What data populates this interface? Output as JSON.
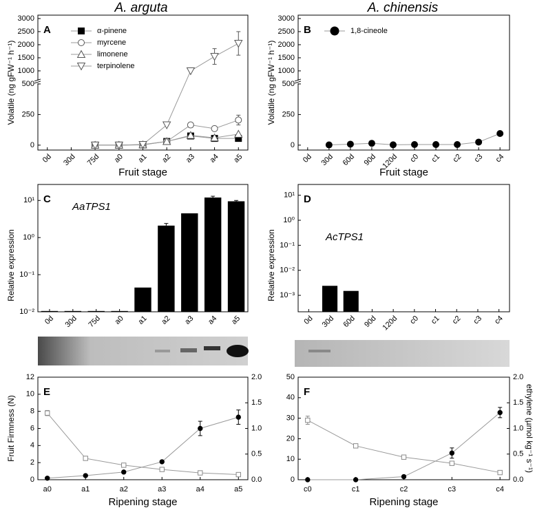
{
  "columns": [
    "A. arguta",
    "A. chinensis"
  ],
  "chart_data": [
    {
      "type": "line",
      "label": "A",
      "ylabel": "Volatile (ng gFW⁻¹ h⁻¹)",
      "xlabel": "Fruit stage",
      "categories": [
        "0d",
        "30d",
        "75d",
        "a0",
        "a1",
        "a2",
        "a3",
        "a4",
        "a5"
      ],
      "ylim": [
        -40,
        3130
      ],
      "ybreak": 500,
      "yticks": [
        0,
        250,
        500,
        1000,
        1500,
        2000,
        2500,
        3000
      ],
      "line_color": "#999",
      "series": [
        {
          "name": "α-pinene",
          "marker": "square-filled",
          "color": "#000",
          "values": [
            null,
            null,
            0,
            0,
            2,
            30,
            75,
            55,
            55
          ]
        },
        {
          "name": "myrcene",
          "marker": "circle-open",
          "color": "#555",
          "values": [
            null,
            null,
            0,
            0,
            5,
            30,
            165,
            135,
            205
          ],
          "errors": [
            null,
            null,
            null,
            null,
            null,
            null,
            null,
            20,
            40
          ]
        },
        {
          "name": "limonene",
          "marker": "triangle-up-open",
          "color": "#555",
          "values": [
            null,
            null,
            0,
            0,
            3,
            30,
            80,
            60,
            90
          ]
        },
        {
          "name": "terpinolene",
          "marker": "triangle-down-open",
          "color": "#555",
          "values": [
            null,
            null,
            0,
            0,
            5,
            165,
            1000,
            1550,
            2050
          ],
          "errors": [
            null,
            null,
            null,
            null,
            null,
            null,
            null,
            300,
            450
          ]
        }
      ]
    },
    {
      "type": "line",
      "label": "B",
      "ylabel": "Volatile (ng gFW⁻¹ h⁻¹)",
      "xlabel": "Fruit stage",
      "categories": [
        "0d",
        "30d",
        "60d",
        "90d",
        "120d",
        "c0",
        "c1",
        "c2",
        "c3",
        "c4"
      ],
      "ylim": [
        -40,
        3130
      ],
      "ybreak": 500,
      "yticks": [
        0,
        250,
        500,
        1000,
        1500,
        2000,
        2500,
        3000
      ],
      "line_color": "#999",
      "series": [
        {
          "name": "1,8-cineole",
          "marker": "circle-filled",
          "color": "#000",
          "values": [
            null,
            2,
            8,
            15,
            3,
            5,
            5,
            5,
            25,
            95
          ]
        }
      ]
    },
    {
      "type": "bar",
      "label": "C",
      "ylabel": "Relative expression",
      "annotation": "AaTPS1",
      "yscale": "log",
      "categories": [
        "0d",
        "30d",
        "75d",
        "a0",
        "a1",
        "a2",
        "a3",
        "a4",
        "a5"
      ],
      "ylim": [
        0.01,
        27
      ],
      "yticks": [
        {
          "value": 0.01,
          "label": "10⁻²"
        },
        {
          "value": 0.1,
          "label": "10⁻¹"
        },
        {
          "value": 1,
          "label": "10⁰"
        },
        {
          "value": 10,
          "label": "10¹"
        }
      ],
      "color": "#000",
      "values": [
        0.0105,
        0.0105,
        0.0105,
        0.0105,
        0.045,
        2.1,
        4.5,
        12,
        9.5
      ],
      "errors": [
        null,
        null,
        null,
        null,
        null,
        0.3,
        null,
        1,
        0.5
      ]
    },
    {
      "type": "bar",
      "label": "D",
      "ylabel": "Relative expression",
      "annotation": "AcTPS1",
      "yscale": "log",
      "categories": [
        "0d",
        "30d",
        "60d",
        "90d",
        "120d",
        "c0",
        "c1",
        "c2",
        "c3",
        "c4"
      ],
      "ylim": [
        0.00022,
        27
      ],
      "yticks": [
        {
          "value": 0.001,
          "label": "10⁻³"
        },
        {
          "value": 0.01,
          "label": "10⁻²"
        },
        {
          "value": 0.1,
          "label": "10⁻¹"
        },
        {
          "value": 1,
          "label": "10⁰"
        },
        {
          "value": 10,
          "label": "10¹"
        }
      ],
      "color": "#000",
      "values": [
        null,
        0.0024,
        0.0015,
        null,
        null,
        null,
        null,
        null,
        null,
        null
      ]
    },
    {
      "type": "line",
      "label": "E",
      "ylabel": "Fruit Firmness (N)",
      "xlabel": "Ripening stage",
      "categories": [
        "a0",
        "a1",
        "a2",
        "a3",
        "a4",
        "a5"
      ],
      "ylim": [
        0,
        12
      ],
      "yticks": [
        0,
        2,
        4,
        6,
        8,
        10,
        12
      ],
      "y2lim": [
        0,
        2
      ],
      "y2ticks": [
        {
          "value": 0,
          "label": "0.0"
        },
        {
          "value": 0.5,
          "label": "0.5"
        },
        {
          "value": 1,
          "label": "1.0"
        },
        {
          "value": 1.5,
          "label": "1.5"
        },
        {
          "value": 2,
          "label": "2.0"
        }
      ],
      "line_color": "#999",
      "series": [
        {
          "marker": "square-open",
          "color": "#888",
          "values": [
            7.8,
            2.5,
            1.7,
            1.2,
            0.8,
            0.6
          ],
          "errors": [
            0.3,
            null,
            null,
            null,
            null,
            null
          ]
        },
        {
          "marker": "circle-filled",
          "color": "#000",
          "axis": "y2",
          "values": [
            0.03,
            0.08,
            0.15,
            0.35,
            1.0,
            1.22
          ],
          "errors": [
            null,
            null,
            null,
            null,
            0.14,
            0.14
          ]
        }
      ]
    },
    {
      "type": "line",
      "label": "F",
      "y2label": "ethylene (µmol kg⁻¹ s⁻¹)",
      "xlabel": "Ripening stage",
      "categories": [
        "c0",
        "c1",
        "c2",
        "c3",
        "c4"
      ],
      "ylim": [
        0,
        50
      ],
      "yticks": [
        0,
        10,
        20,
        30,
        40,
        50
      ],
      "y2lim": [
        0,
        2
      ],
      "y2ticks": [
        {
          "value": 0,
          "label": "0.0"
        },
        {
          "value": 0.5,
          "label": "0.5"
        },
        {
          "value": 1,
          "label": "1.0"
        },
        {
          "value": 1.5,
          "label": "1.5"
        },
        {
          "value": 2,
          "label": "2.0"
        }
      ],
      "line_color": "#999",
      "series": [
        {
          "marker": "square-open",
          "color": "#888",
          "values": [
            29,
            16.5,
            11,
            8,
            3.5
          ],
          "errors": [
            2,
            null,
            null,
            null,
            null
          ]
        },
        {
          "marker": "circle-filled",
          "color": "#000",
          "axis": "y2",
          "values": [
            0,
            0,
            0.06,
            0.52,
            1.31
          ],
          "errors": [
            null,
            null,
            null,
            0.1,
            0.1
          ]
        }
      ]
    }
  ]
}
